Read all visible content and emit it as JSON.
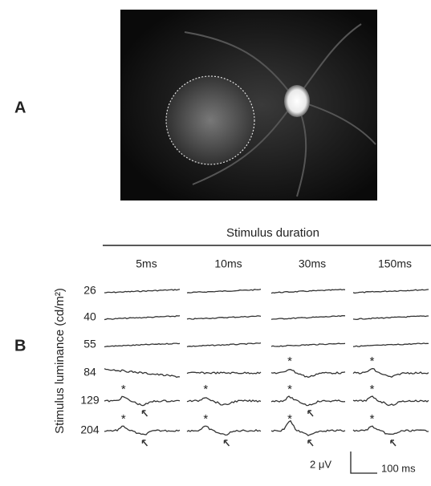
{
  "panels": {
    "a": {
      "label": "A"
    },
    "b": {
      "label": "B"
    }
  },
  "header": "Stimulus duration",
  "columns": [
    "5ms",
    "10ms",
    "30ms",
    "150ms"
  ],
  "rows": [
    "26",
    "40",
    "55",
    "84",
    "129",
    "204"
  ],
  "y_label": "Stimulus luminance (cd/m²)",
  "marker": "*",
  "scale_bar": {
    "voltage": "2 μV",
    "time": "100 ms"
  }
}
